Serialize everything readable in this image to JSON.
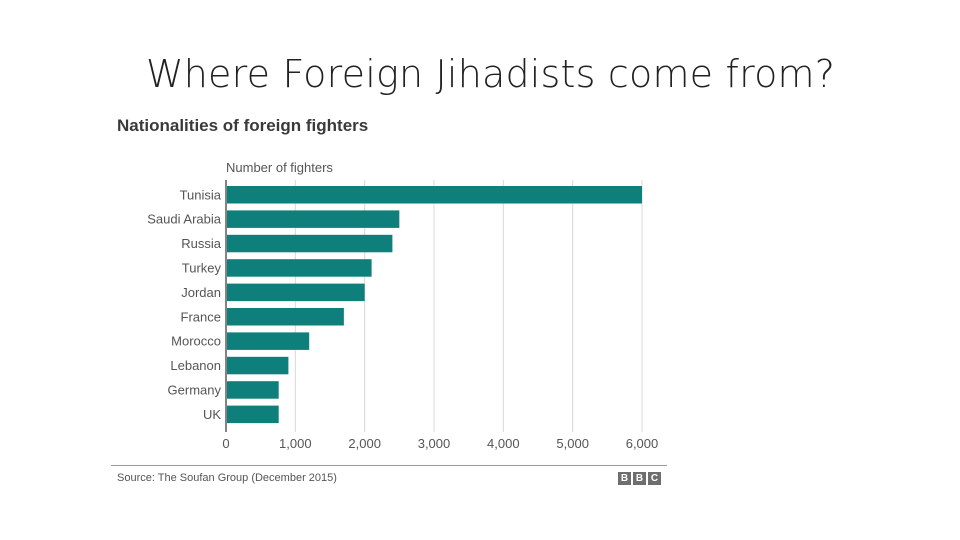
{
  "slide": {
    "title": "Where Foreign Jihadists come from?"
  },
  "chart_data": {
    "type": "bar",
    "orientation": "horizontal",
    "title": "Nationalities of foreign fighters",
    "xlabel": "Number of fighters",
    "categories": [
      "Tunisia",
      "Saudi Arabia",
      "Russia",
      "Turkey",
      "Jordan",
      "France",
      "Morocco",
      "Lebanon",
      "Germany",
      "UK"
    ],
    "values": [
      6000,
      2500,
      2400,
      2100,
      2000,
      1700,
      1200,
      900,
      760,
      760
    ],
    "xlim": [
      0,
      6000
    ],
    "xticks": [
      0,
      1000,
      2000,
      3000,
      4000,
      5000,
      6000
    ],
    "xtick_labels": [
      "0",
      "1,000",
      "2,000",
      "3,000",
      "4,000",
      "5,000",
      "6,000"
    ],
    "grid": "vertical",
    "bar_color": "#0e7f7a",
    "source": "Source: The Soufan Group (December 2015)"
  },
  "branding": {
    "logo_letters": [
      "B",
      "B",
      "C"
    ]
  }
}
